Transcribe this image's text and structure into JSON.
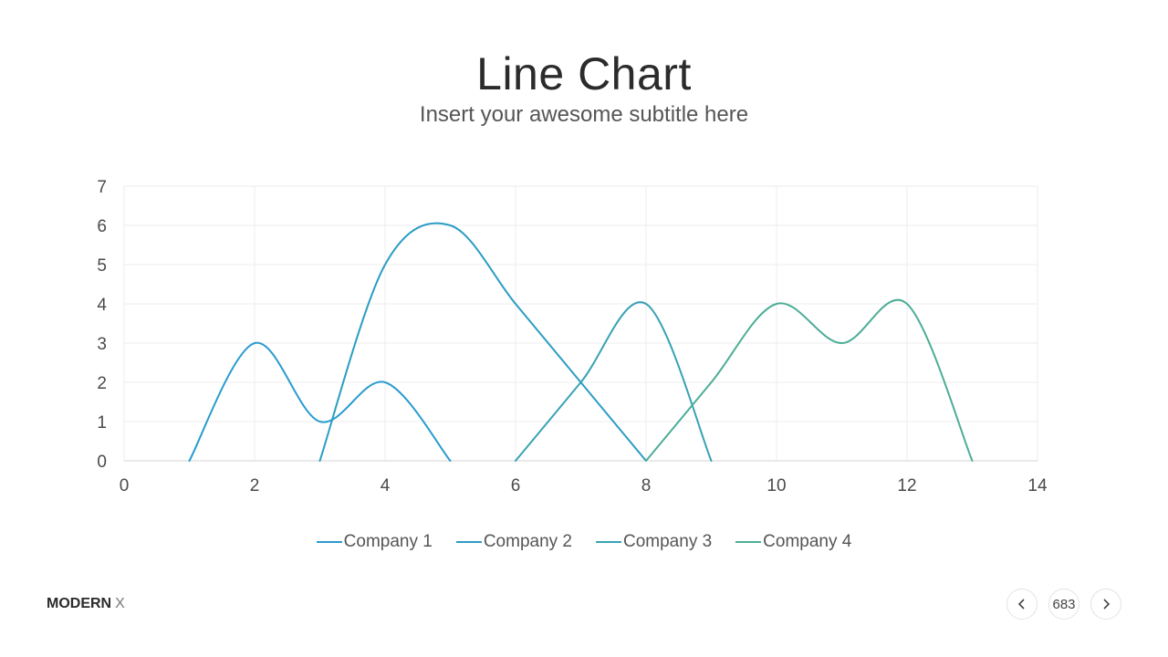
{
  "slide": {
    "title": "Line Chart",
    "subtitle": "Insert your awesome subtitle here",
    "brand_bold": "MODERN",
    "brand_light": "X",
    "page_number": "683",
    "prev_icon": "chevron-left-icon",
    "next_icon": "chevron-right-icon"
  },
  "chart_data": {
    "type": "line",
    "smooth": true,
    "xlim": [
      0,
      14
    ],
    "ylim": [
      0,
      7
    ],
    "x_ticks": [
      0,
      2,
      4,
      6,
      8,
      10,
      12,
      14
    ],
    "y_ticks": [
      0,
      1,
      2,
      3,
      4,
      5,
      6,
      7
    ],
    "grid": true,
    "legend_position": "bottom",
    "series": [
      {
        "name": "Company 1",
        "color": "#2a9bd0",
        "points": [
          [
            1,
            0
          ],
          [
            2,
            3
          ],
          [
            3,
            1
          ],
          [
            4,
            2
          ],
          [
            5,
            0
          ]
        ]
      },
      {
        "name": "Company 2",
        "color": "#2a9cc4",
        "points": [
          [
            3,
            0
          ],
          [
            4,
            5
          ],
          [
            5,
            6
          ],
          [
            6,
            4
          ],
          [
            7,
            2
          ],
          [
            8,
            0
          ]
        ]
      },
      {
        "name": "Company 3",
        "color": "#38a2b4",
        "points": [
          [
            6,
            0
          ],
          [
            7,
            2
          ],
          [
            8,
            4
          ],
          [
            9,
            0
          ]
        ]
      },
      {
        "name": "Company 4",
        "color": "#4cad96",
        "points": [
          [
            8,
            0
          ],
          [
            9,
            2
          ],
          [
            10,
            4
          ],
          [
            11,
            3
          ],
          [
            12,
            4
          ],
          [
            13,
            0
          ]
        ]
      }
    ]
  }
}
